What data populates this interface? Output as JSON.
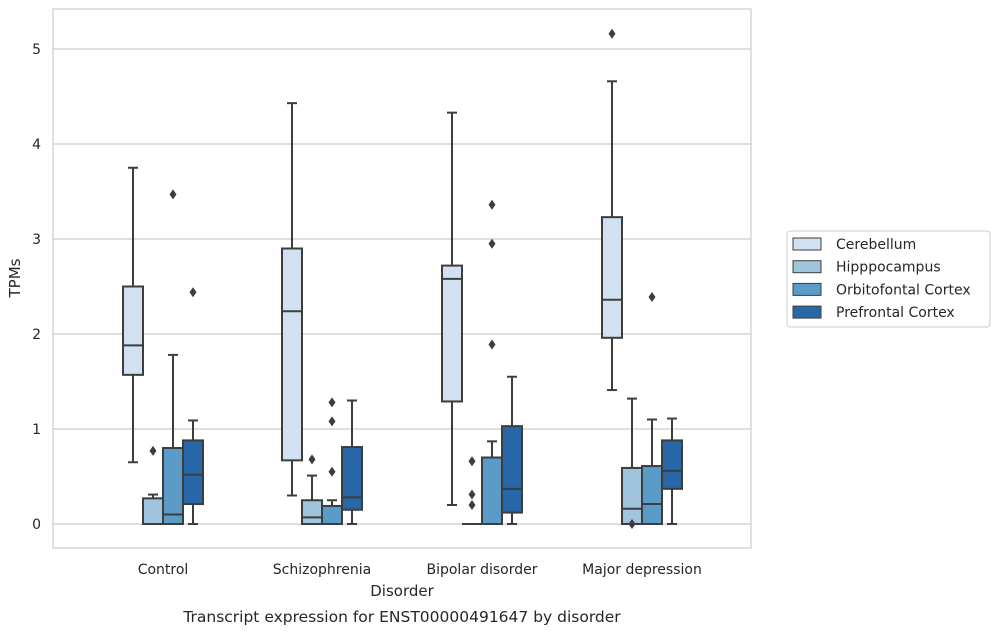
{
  "chart_data": {
    "type": "box",
    "title": "",
    "caption": "Transcript expression for ENST00000491647 by disorder",
    "xlabel": "Disorder",
    "ylabel": "TPMs",
    "ylim": [
      -0.25,
      5.42
    ],
    "yticks": [
      0,
      1,
      2,
      3,
      4,
      5
    ],
    "grid": "horizontal",
    "legend_position": "right",
    "categories": [
      "Control",
      "Schizophrenia",
      "Bipolar disorder",
      "Major depression"
    ],
    "series": [
      {
        "name": "Cerebellum",
        "color": "#d1e1f1",
        "boxes": [
          {
            "whisker_low": 0.65,
            "q1": 1.57,
            "median": 1.88,
            "q3": 2.5,
            "whisker_high": 3.75,
            "outliers": []
          },
          {
            "whisker_low": 0.3,
            "q1": 0.67,
            "median": 2.24,
            "q3": 2.9,
            "whisker_high": 4.43,
            "outliers": []
          },
          {
            "whisker_low": 0.2,
            "q1": 1.29,
            "median": 2.58,
            "q3": 2.72,
            "whisker_high": 4.33,
            "outliers": []
          },
          {
            "whisker_low": 1.41,
            "q1": 1.96,
            "median": 2.36,
            "q3": 3.23,
            "whisker_high": 4.66,
            "outliers": [
              5.16
            ]
          }
        ]
      },
      {
        "name": "Hipppocampus",
        "color": "#a0c4de",
        "boxes": [
          {
            "whisker_low": 0.0,
            "q1": 0.0,
            "median": 0.0,
            "q3": 0.27,
            "whisker_high": 0.31,
            "outliers": [
              0.77
            ]
          },
          {
            "whisker_low": 0.0,
            "q1": 0.0,
            "median": 0.07,
            "q3": 0.25,
            "whisker_high": 0.51,
            "outliers": [
              0.68
            ]
          },
          {
            "whisker_low": 0.0,
            "q1": 0.0,
            "median": 0.0,
            "q3": 0.0,
            "whisker_high": 0.0,
            "outliers": [
              0.2,
              0.31,
              0.66
            ]
          },
          {
            "whisker_low": 0.0,
            "q1": 0.0,
            "median": 0.16,
            "q3": 0.59,
            "whisker_high": 1.32,
            "outliers": [
              0.0
            ]
          }
        ]
      },
      {
        "name": "Orbitofontal Cortex",
        "color": "#5b9bc8",
        "boxes": [
          {
            "whisker_low": 0.0,
            "q1": 0.0,
            "median": 0.1,
            "q3": 0.8,
            "whisker_high": 1.78,
            "outliers": [
              3.47
            ]
          },
          {
            "whisker_low": 0.0,
            "q1": 0.0,
            "median": 0.0,
            "q3": 0.19,
            "whisker_high": 0.25,
            "outliers": [
              0.55,
              1.08,
              1.28
            ]
          },
          {
            "whisker_low": 0.0,
            "q1": 0.0,
            "median": 0.0,
            "q3": 0.7,
            "whisker_high": 0.87,
            "outliers": [
              1.89,
              2.95,
              3.36
            ]
          },
          {
            "whisker_low": 0.0,
            "q1": 0.0,
            "median": 0.21,
            "q3": 0.61,
            "whisker_high": 1.1,
            "outliers": [
              2.39
            ]
          }
        ]
      },
      {
        "name": "Prefrontal Cortex",
        "color": "#2967a8",
        "boxes": [
          {
            "whisker_low": 0.0,
            "q1": 0.21,
            "median": 0.52,
            "q3": 0.88,
            "whisker_high": 1.09,
            "outliers": [
              2.44
            ]
          },
          {
            "whisker_low": 0.0,
            "q1": 0.15,
            "median": 0.28,
            "q3": 0.81,
            "whisker_high": 1.3,
            "outliers": []
          },
          {
            "whisker_low": 0.0,
            "q1": 0.12,
            "median": 0.37,
            "q3": 1.03,
            "whisker_high": 1.55,
            "outliers": []
          },
          {
            "whisker_low": 0.0,
            "q1": 0.37,
            "median": 0.56,
            "q3": 0.88,
            "whisker_high": 1.11,
            "outliers": []
          }
        ]
      }
    ]
  }
}
